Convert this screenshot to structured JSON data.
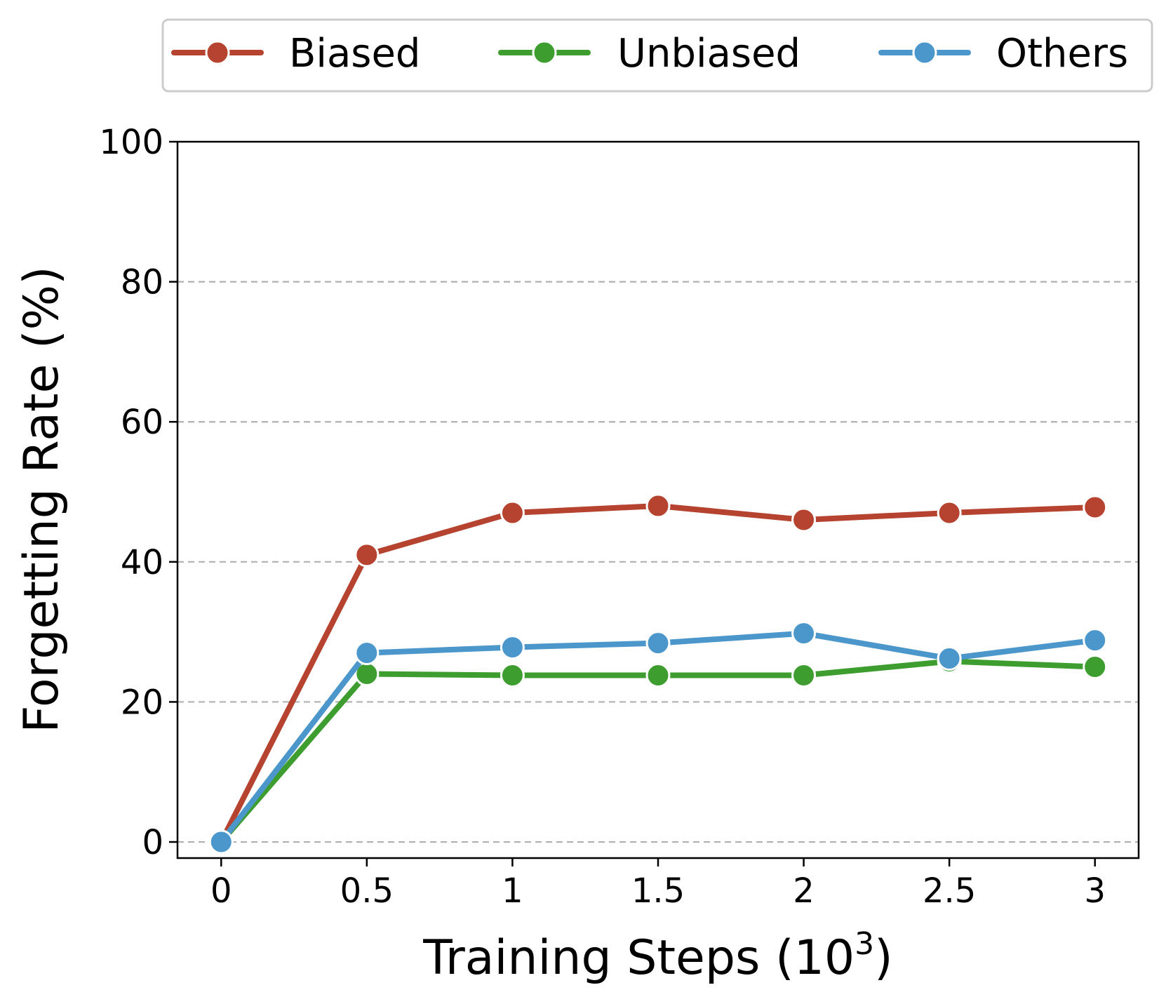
{
  "chart_data": {
    "type": "line",
    "title": "",
    "xlabel": "Training Steps (10",
    "xlabel_sup": "3",
    "xlabel_close": ")",
    "ylabel": "Forgetting Rate (%)",
    "x": [
      0,
      0.5,
      1,
      1.5,
      2,
      2.5,
      3
    ],
    "x_tick_labels": [
      "0",
      "0.5",
      "1",
      "1.5",
      "2",
      "2.5",
      "3"
    ],
    "y_ticks": [
      0,
      20,
      40,
      60,
      80,
      100
    ],
    "y_tick_labels": [
      "0",
      "20",
      "40",
      "60",
      "80",
      "100"
    ],
    "xlim": [
      -0.15,
      3.15
    ],
    "ylim": [
      -2.3,
      100
    ],
    "grid": "horizontal dashed",
    "legend_position": "top, outside plot",
    "series": [
      {
        "name": "Biased",
        "color": "#b5432f",
        "values": [
          0,
          41,
          47,
          48,
          46,
          47,
          47.8
        ]
      },
      {
        "name": "Unbiased",
        "color": "#3d9d2f",
        "values": [
          0,
          24,
          23.8,
          23.8,
          23.8,
          25.8,
          25
        ]
      },
      {
        "name": "Others",
        "color": "#4b97cb",
        "values": [
          0,
          27,
          27.8,
          28.4,
          29.8,
          26.2,
          28.8
        ]
      }
    ]
  }
}
